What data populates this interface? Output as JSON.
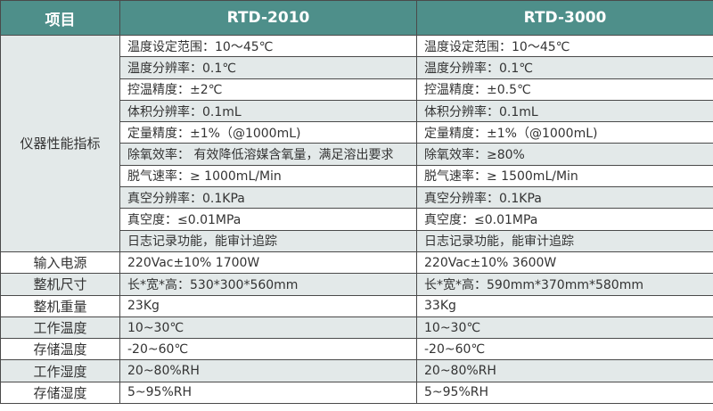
{
  "header": {
    "item": "项目",
    "model_a": "RTD-2010",
    "model_b": "RTD-3000"
  },
  "group_label": "仪器性能指标",
  "group_rows": [
    {
      "a": "温度设定范围：10～45℃",
      "b": "温度设定范围：10～45℃"
    },
    {
      "a": "温度分辨率：0.1℃",
      "b": "温度分辨率：0.1℃"
    },
    {
      "a": "控温精度：±2℃",
      "b": "控温精度：±0.5℃"
    },
    {
      "a": "体积分辨率：0.1mL",
      "b": "体积分辨率：0.1mL"
    },
    {
      "a": "定量精度：±1%（@1000mL)",
      "b": "定量精度：±1%（@1000mL)"
    },
    {
      "a": "除氧效率： 有效降低溶媒含氧量，满足溶出要求",
      "b": "除氧效率：≥80%"
    },
    {
      "a": "脱气速率：≥ 1000mL/Min",
      "b": "脱气速率：≥ 1500mL/Min"
    },
    {
      "a": "真空分辨率：0.1KPa",
      "b": "真空分辨率：0.1KPa"
    },
    {
      "a": "真空度：≤0.01MPa",
      "b": "真空度：≤0.01MPa"
    },
    {
      "a": "日志记录功能，能审计追踪",
      "b": "日志记录功能，能审计追踪"
    }
  ],
  "rows": [
    {
      "label": "输入电源",
      "a": "220Vac±10% 1700W",
      "b": "220Vac±10% 3600W"
    },
    {
      "label": "整机尺寸",
      "a": "长*宽*高：530*300*560mm",
      "b": "长*宽*高：590mm*370mm*580mm"
    },
    {
      "label": "整机重量",
      "a": "23Kg",
      "b": "33Kg"
    },
    {
      "label": "工作温度",
      "a": "10~30℃",
      "b": "10~30℃"
    },
    {
      "label": "存储温度",
      "a": "-20~60℃",
      "b": "-20~60℃"
    },
    {
      "label": "工作湿度",
      "a": "20~80%RH",
      "b": "20~80%RH"
    },
    {
      "label": "存储湿度",
      "a": "5~95%RH",
      "b": "5~95%RH"
    }
  ],
  "colors": {
    "header_bg": "#4e8f8a",
    "alt_row_bg": "#e3e9e9",
    "border": "#4a4a4a"
  }
}
